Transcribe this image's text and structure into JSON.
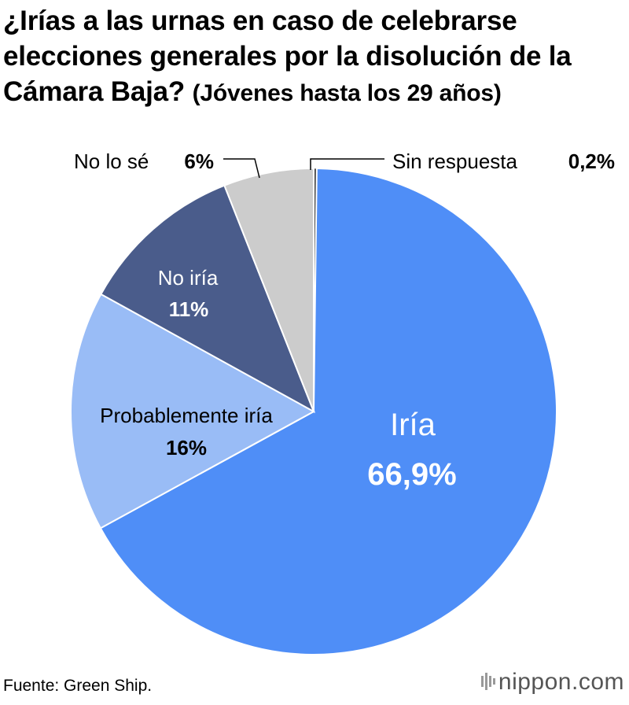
{
  "title_main": "¿Irías a las urnas en caso de celebrarse elecciones generales por la disolución de la Cámara Baja?",
  "title_sub": "(Jóvenes hasta los 29 años)",
  "source": "Fuente: Green Ship.",
  "logo_name": "nippon",
  "logo_dot": ".com",
  "colors": {
    "iria": "#4f8ef7",
    "probablemente": "#99bcf6",
    "no_iria": "#4a5c8b",
    "no_lo_se": "#cccccc",
    "sin_respuesta": "#444444",
    "leader": "#000000"
  },
  "chart_data": {
    "type": "pie",
    "title": "¿Irías a las urnas en caso de celebrarse elecciones generales por la disolución de la Cámara Baja? (Jóvenes hasta los 29 años)",
    "unit": "%",
    "slices": [
      {
        "key": "iria",
        "label": "Iría",
        "value_label": "66,9%",
        "value": 66.9,
        "color": "#4f8ef7"
      },
      {
        "key": "probablemente",
        "label": "Probablemente iría",
        "value_label": "16%",
        "value": 16.0,
        "color": "#99bcf6"
      },
      {
        "key": "no_iria",
        "label": "No iría",
        "value_label": "11%",
        "value": 11.0,
        "color": "#4a5c8b"
      },
      {
        "key": "no_lo_se",
        "label": "No lo sé",
        "value_label": "6%",
        "value": 6.0,
        "color": "#cccccc"
      },
      {
        "key": "sin_respuesta",
        "label": "Sin respuesta",
        "value_label": "0,2%",
        "value": 0.2,
        "color": "#444444"
      }
    ]
  }
}
